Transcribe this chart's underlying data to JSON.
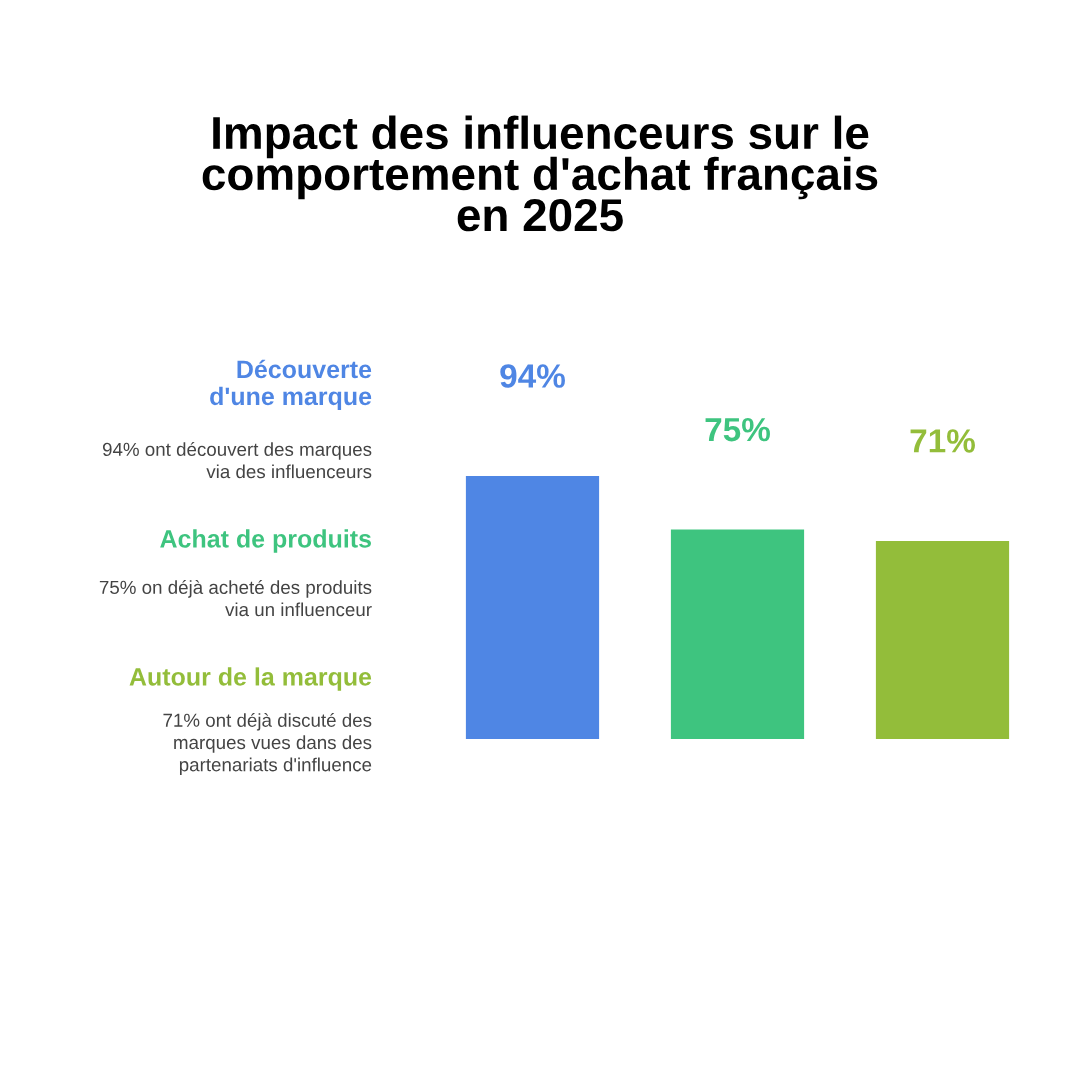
{
  "chart_data": {
    "type": "bar",
    "title": "Impact des influenceurs sur le\ncomportement d'achat français\nen 2025",
    "categories": [
      null,
      null,
      null
    ],
    "values": [
      94,
      75,
      71
    ],
    "colors": [
      "#4f86e4",
      "#3ec47f",
      "#93bd3a"
    ],
    "value_labels": [
      "94%",
      "75%",
      "71%"
    ],
    "annotations": [
      "Découverte\nd'une marque",
      "94% ont découvert des marques\nvia des influenceurs",
      "Achat de produits",
      "75% on déjà acheté des produits\nvia un influenceur",
      "Autour de la marque",
      "71% ont déjà discuté des\nmarques vues dans des\npartenariats d'influence"
    ],
    "tick_labels": false
  }
}
